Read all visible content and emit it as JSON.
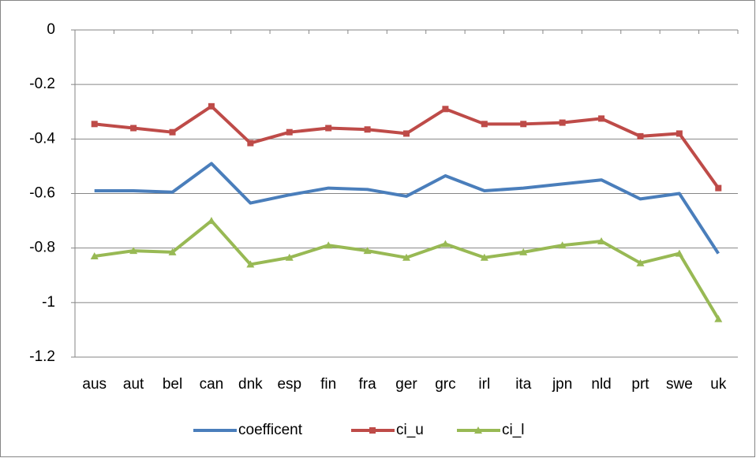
{
  "chart_data": {
    "type": "line",
    "categories": [
      "aus",
      "aut",
      "bel",
      "can",
      "dnk",
      "esp",
      "fin",
      "fra",
      "ger",
      "grc",
      "irl",
      "ita",
      "jpn",
      "nld",
      "prt",
      "swe",
      "uk"
    ],
    "series": [
      {
        "name": "coefficent",
        "color": "#4a7ebb",
        "marker": "none",
        "values": [
          -0.59,
          -0.59,
          -0.595,
          -0.49,
          -0.635,
          -0.605,
          -0.58,
          -0.585,
          -0.61,
          -0.535,
          -0.59,
          -0.58,
          -0.565,
          -0.55,
          -0.62,
          -0.6,
          -0.82
        ]
      },
      {
        "name": "ci_u",
        "color": "#be4b48",
        "marker": "square",
        "values": [
          -0.345,
          -0.36,
          -0.375,
          -0.28,
          -0.415,
          -0.375,
          -0.36,
          -0.365,
          -0.38,
          -0.29,
          -0.345,
          -0.345,
          -0.34,
          -0.325,
          -0.39,
          -0.38,
          -0.58
        ]
      },
      {
        "name": "ci_l",
        "color": "#98b954",
        "marker": "triangle",
        "values": [
          -0.83,
          -0.81,
          -0.815,
          -0.7,
          -0.86,
          -0.835,
          -0.79,
          -0.81,
          -0.835,
          -0.785,
          -0.835,
          -0.815,
          -0.79,
          -0.775,
          -0.855,
          -0.82,
          -1.06
        ]
      }
    ],
    "ylim": [
      -1.2,
      0
    ],
    "yticks": [
      0,
      -0.2,
      -0.4,
      -0.6,
      -0.8,
      -1,
      -1.2
    ],
    "grid": true,
    "legend": "bottom"
  }
}
